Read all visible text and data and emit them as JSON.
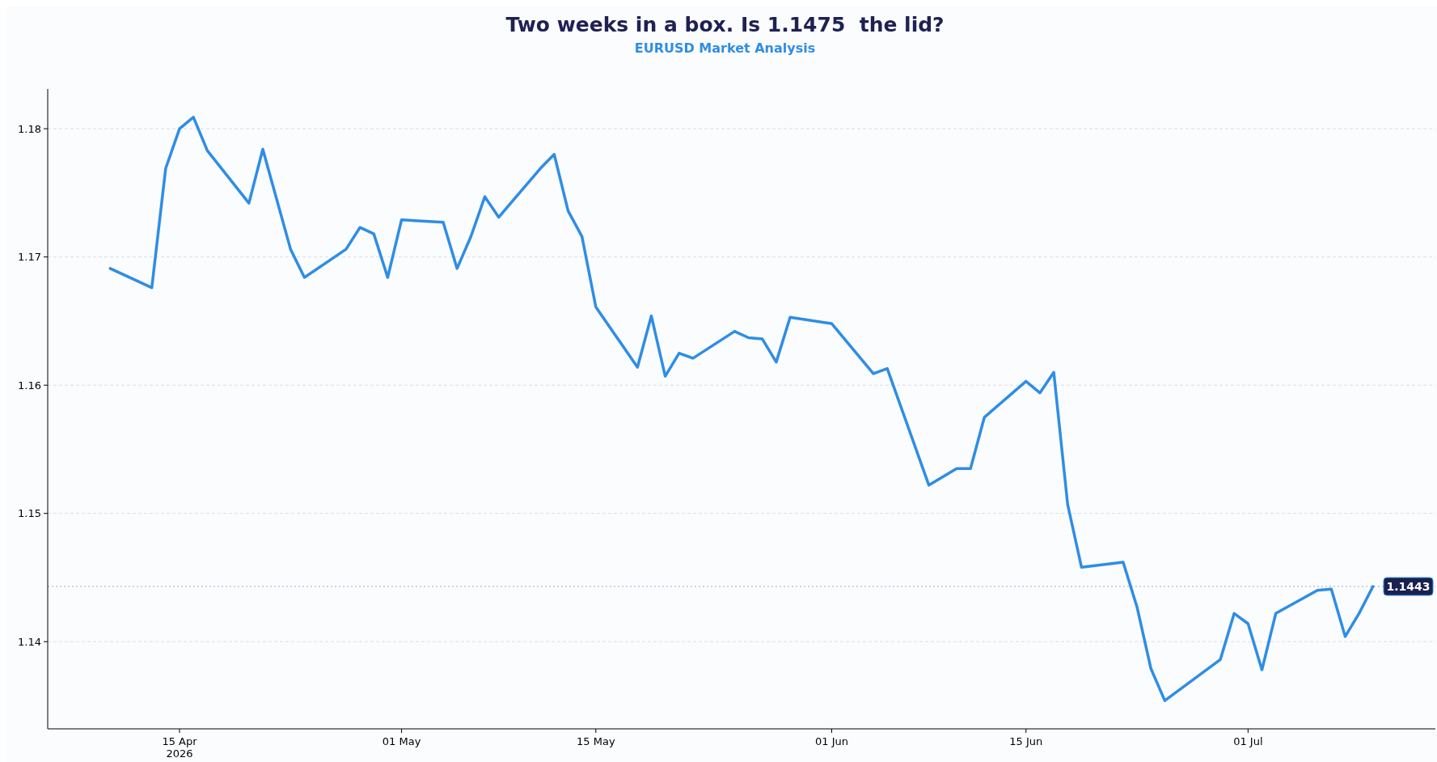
{
  "chart_data": {
    "type": "line",
    "title": "Two weeks in a box. Is 1.1475  the lid?",
    "subtitle": "EURUSD Market Analysis",
    "x": [
      "2026-04-10",
      "2026-04-13",
      "2026-04-14",
      "2026-04-15",
      "2026-04-16",
      "2026-04-17",
      "2026-04-20",
      "2026-04-21",
      "2026-04-23",
      "2026-04-24",
      "2026-04-27",
      "2026-04-28",
      "2026-04-29",
      "2026-04-30",
      "2026-05-01",
      "2026-05-04",
      "2026-05-05",
      "2026-05-06",
      "2026-05-07",
      "2026-05-08",
      "2026-05-11",
      "2026-05-12",
      "2026-05-13",
      "2026-05-14",
      "2026-05-15",
      "2026-05-18",
      "2026-05-19",
      "2026-05-20",
      "2026-05-21",
      "2026-05-22",
      "2026-05-25",
      "2026-05-26",
      "2026-05-27",
      "2026-05-28",
      "2026-05-29",
      "2026-06-01",
      "2026-06-04",
      "2026-06-05",
      "2026-06-08",
      "2026-06-10",
      "2026-06-11",
      "2026-06-12",
      "2026-06-15",
      "2026-06-16",
      "2026-06-17",
      "2026-06-18",
      "2026-06-19",
      "2026-06-22",
      "2026-06-23",
      "2026-06-24",
      "2026-06-25",
      "2026-06-29",
      "2026-06-30",
      "2026-07-01",
      "2026-07-02",
      "2026-07-03",
      "2026-07-06",
      "2026-07-07",
      "2026-07-08",
      "2026-07-09",
      "2026-07-10"
    ],
    "series": [
      {
        "color": "#2e8de6",
        "values": [
          1.1691,
          1.1676,
          1.1769,
          1.18,
          1.1809,
          1.1783,
          1.1742,
          1.1784,
          1.1706,
          1.1684,
          1.1706,
          1.1723,
          1.1718,
          1.1684,
          1.1729,
          1.1727,
          1.1691,
          1.1716,
          1.1747,
          1.1731,
          1.1769,
          1.178,
          1.1736,
          1.1716,
          1.1661,
          1.1614,
          1.1654,
          1.1607,
          1.1625,
          1.1621,
          1.1642,
          1.1637,
          1.1636,
          1.1618,
          1.1653,
          1.1648,
          1.1609,
          1.1613,
          1.1522,
          1.1535,
          1.1535,
          1.1575,
          1.1603,
          1.1594,
          1.161,
          1.1507,
          1.1458,
          1.1462,
          1.1427,
          1.1379,
          1.1354,
          1.1386,
          1.1422,
          1.1414,
          1.1378,
          1.1422,
          1.144,
          1.1441,
          1.1404,
          1.1422,
          1.1443
        ]
      }
    ],
    "xlim": [
      "2026-04-05T12:00",
      "2026-07-14T12:00"
    ],
    "xticks": [
      {
        "value": "2026-04-15",
        "label": "15 Apr\n2026"
      },
      {
        "value": "2026-05-01",
        "label": "01 May"
      },
      {
        "value": "2026-05-15",
        "label": "15 May"
      },
      {
        "value": "2026-06-01",
        "label": "01 Jun"
      },
      {
        "value": "2026-06-15",
        "label": "15 Jun"
      },
      {
        "value": "2026-07-01",
        "label": "01 Jul"
      }
    ],
    "ylim": [
      1.1332,
      1.1831
    ],
    "yticks": [
      1.14,
      1.15,
      1.16,
      1.17,
      1.18
    ],
    "grid": "y",
    "line_style": "solid",
    "marker": "none",
    "ref_lines": [
      {
        "axis": "y",
        "value": 1.1443,
        "label": "1.1443",
        "color": "#a3aac2",
        "line_style": "dotted"
      }
    ]
  }
}
